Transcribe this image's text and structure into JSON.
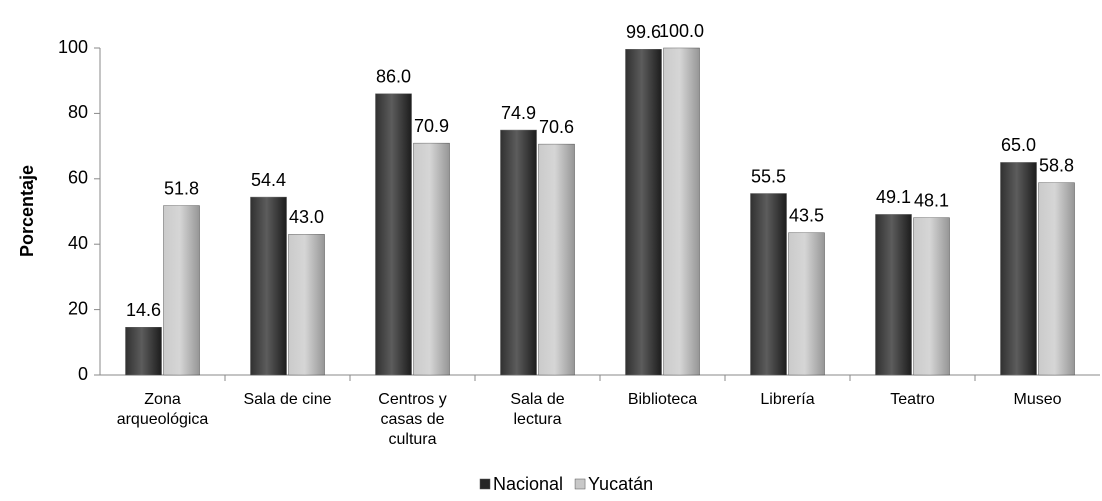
{
  "chart_data": {
    "type": "bar",
    "y_label": "Porcentaje",
    "categories": [
      [
        "Zona",
        "arqueológica"
      ],
      [
        "Sala de cine"
      ],
      [
        "Centros y",
        "casas de",
        "cultura"
      ],
      [
        "Sala de",
        "lectura"
      ],
      [
        "Biblioteca"
      ],
      [
        "Librería"
      ],
      [
        "Teatro"
      ],
      [
        "Museo"
      ]
    ],
    "series": [
      {
        "name": "Nacional",
        "color": "#262626",
        "values": [
          14.6,
          54.4,
          86,
          74.9,
          99.6,
          55.5,
          49.1,
          65
        ],
        "value_labels": [
          "14.6",
          "54.4",
          "86.0",
          "74.9",
          "99.6",
          "55.5",
          "49.1",
          "65.0"
        ]
      },
      {
        "name": "Yucatán",
        "color": "#c8c8c8",
        "values": [
          51.8,
          43,
          70.9,
          70.6,
          100,
          43.5,
          48.1,
          58.8
        ],
        "value_labels": [
          "51.8",
          "43.0",
          "70.9",
          "70.6",
          "100.0",
          "43.5",
          "48.1",
          "58.8"
        ]
      }
    ],
    "ylim": [
      0,
      100
    ],
    "yticks": [
      0,
      20,
      40,
      60,
      80,
      100
    ],
    "legend": "bottom"
  }
}
